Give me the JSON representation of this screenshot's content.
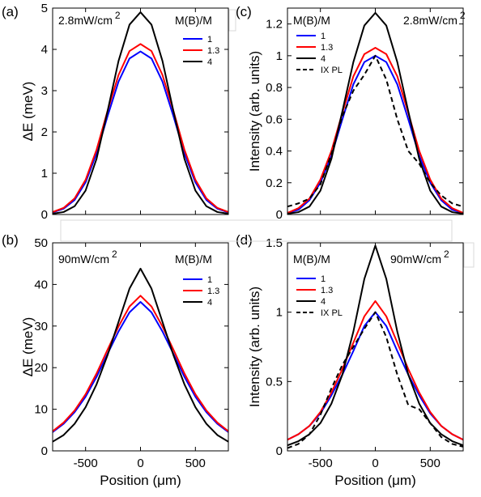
{
  "chart_data": [
    {
      "panel_label": "(a)",
      "type": "line",
      "annotation": "2.8mW/cm",
      "annotation_sup": "2",
      "legend_title": "M(B)/M",
      "xlabel": "",
      "ylabel": "ΔE (meV)",
      "xlim": [
        -800,
        800
      ],
      "ylim": [
        0,
        5
      ],
      "xticks": [],
      "xtick_labels": [],
      "yticks": [
        0,
        1,
        2,
        3,
        4,
        5
      ],
      "ytick_labels": [
        "0",
        "1",
        "2",
        "3",
        "4",
        "5"
      ],
      "x": [
        -800,
        -700,
        -600,
        -500,
        -400,
        -300,
        -200,
        -100,
        0,
        100,
        200,
        300,
        400,
        500,
        600,
        700,
        800
      ],
      "series": [
        {
          "name": "1",
          "color": "#0000ff",
          "dash": "solid",
          "values": [
            0.05,
            0.14,
            0.35,
            0.78,
            1.48,
            2.38,
            3.22,
            3.78,
            3.95,
            3.78,
            3.22,
            2.38,
            1.48,
            0.78,
            0.35,
            0.14,
            0.05
          ]
        },
        {
          "name": "1.3",
          "color": "#ff0000",
          "dash": "solid",
          "values": [
            0.06,
            0.16,
            0.39,
            0.84,
            1.57,
            2.51,
            3.38,
            3.96,
            4.13,
            3.96,
            3.38,
            2.51,
            1.57,
            0.84,
            0.39,
            0.16,
            0.06
          ]
        },
        {
          "name": "4",
          "color": "#000000",
          "dash": "solid",
          "values": [
            0.02,
            0.06,
            0.2,
            0.58,
            1.35,
            2.5,
            3.72,
            4.6,
            4.9,
            4.6,
            3.72,
            2.5,
            1.35,
            0.58,
            0.2,
            0.06,
            0.02
          ]
        }
      ]
    },
    {
      "panel_label": "(c)",
      "type": "line",
      "annotation": "2.8mW/cm",
      "annotation_sup": "2",
      "legend_title": "M(B)/M",
      "xlabel": "",
      "ylabel": "Intensity (arb. units)",
      "xlim": [
        -800,
        800
      ],
      "ylim": [
        0,
        1.3
      ],
      "xticks": [],
      "xtick_labels": [],
      "yticks": [
        0,
        0.2,
        0.4,
        0.6,
        0.8,
        1,
        1.2
      ],
      "ytick_labels": [
        "0",
        "0.2",
        "0.4",
        "0.6",
        "0.8",
        "1",
        "1.2"
      ],
      "x": [
        -800,
        -700,
        -600,
        -500,
        -400,
        -300,
        -200,
        -100,
        0,
        100,
        200,
        300,
        400,
        500,
        600,
        700,
        800
      ],
      "series": [
        {
          "name": "1",
          "color": "#0000ff",
          "dash": "solid",
          "values": [
            0.01,
            0.03,
            0.09,
            0.2,
            0.37,
            0.6,
            0.82,
            0.96,
            1.0,
            0.96,
            0.82,
            0.6,
            0.37,
            0.2,
            0.09,
            0.03,
            0.01
          ]
        },
        {
          "name": "1.3",
          "color": "#ff0000",
          "dash": "solid",
          "values": [
            0.01,
            0.04,
            0.1,
            0.22,
            0.4,
            0.64,
            0.87,
            1.01,
            1.05,
            1.01,
            0.87,
            0.64,
            0.4,
            0.22,
            0.1,
            0.04,
            0.01
          ]
        },
        {
          "name": "4",
          "color": "#000000",
          "dash": "solid",
          "values": [
            0.005,
            0.015,
            0.05,
            0.15,
            0.35,
            0.65,
            0.96,
            1.19,
            1.27,
            1.19,
            0.96,
            0.65,
            0.35,
            0.15,
            0.05,
            0.015,
            0.005
          ]
        },
        {
          "name": "IX PL",
          "color": "#000000",
          "dash": "dashed",
          "values": [
            0.05,
            0.07,
            0.1,
            0.19,
            0.38,
            0.62,
            0.78,
            0.88,
            1.0,
            0.85,
            0.6,
            0.4,
            0.32,
            0.2,
            0.12,
            0.07,
            0.05
          ]
        }
      ]
    },
    {
      "panel_label": "(b)",
      "type": "line",
      "annotation": "90mW/cm",
      "annotation_sup": "2",
      "legend_title": "M(B)/M",
      "xlabel": "Position (μm)",
      "ylabel": "ΔE (meV)",
      "xlim": [
        -800,
        800
      ],
      "ylim": [
        0,
        50
      ],
      "xticks": [
        -500,
        0,
        500
      ],
      "xtick_labels": [
        "-500",
        "0",
        "500"
      ],
      "yticks": [
        0,
        10,
        20,
        30,
        40,
        50
      ],
      "ytick_labels": [
        "0",
        "10",
        "20",
        "30",
        "40",
        "50"
      ],
      "x": [
        -800,
        -700,
        -600,
        -500,
        -400,
        -300,
        -200,
        -100,
        0,
        100,
        200,
        300,
        400,
        500,
        600,
        700,
        800
      ],
      "series": [
        {
          "name": "1",
          "color": "#0000ff",
          "dash": "solid",
          "values": [
            4.5,
            6.5,
            9.3,
            13.0,
            17.8,
            23.3,
            28.7,
            33.3,
            35.8,
            33.3,
            28.7,
            23.3,
            17.8,
            13.0,
            9.3,
            6.5,
            4.5
          ]
        },
        {
          "name": "1.3",
          "color": "#ff0000",
          "dash": "solid",
          "values": [
            4.7,
            6.8,
            9.7,
            13.6,
            18.6,
            24.3,
            29.9,
            34.7,
            37.3,
            34.7,
            29.9,
            24.3,
            18.6,
            13.6,
            9.7,
            6.8,
            4.7
          ]
        },
        {
          "name": "4",
          "color": "#000000",
          "dash": "solid",
          "values": [
            2.2,
            3.8,
            6.5,
            10.5,
            16.0,
            23.0,
            31.0,
            39.0,
            43.8,
            39.0,
            31.0,
            23.0,
            16.0,
            10.5,
            6.5,
            3.8,
            2.2
          ]
        }
      ]
    },
    {
      "panel_label": "(d)",
      "type": "line",
      "annotation": "90mW/cm",
      "annotation_sup": "2",
      "legend_title": "M(B)/M",
      "xlabel": "Position (μm)",
      "ylabel": "Intensity (arb. units)",
      "xlim": [
        -800,
        800
      ],
      "ylim": [
        0,
        1.5
      ],
      "xticks": [
        -500,
        0,
        500
      ],
      "xtick_labels": [
        "-500",
        "0",
        "500"
      ],
      "yticks": [
        0,
        0.5,
        1,
        1.5
      ],
      "ytick_labels": [
        "0",
        "0.5",
        "1",
        "1.5"
      ],
      "x": [
        -800,
        -700,
        -600,
        -500,
        -400,
        -300,
        -200,
        -100,
        0,
        100,
        200,
        300,
        400,
        500,
        600,
        700,
        800
      ],
      "series": [
        {
          "name": "1",
          "color": "#0000ff",
          "dash": "solid",
          "values": [
            0.08,
            0.12,
            0.18,
            0.27,
            0.4,
            0.55,
            0.72,
            0.9,
            1.0,
            0.9,
            0.72,
            0.55,
            0.4,
            0.27,
            0.18,
            0.12,
            0.08
          ]
        },
        {
          "name": "1.3",
          "color": "#ff0000",
          "dash": "solid",
          "values": [
            0.08,
            0.12,
            0.18,
            0.28,
            0.42,
            0.59,
            0.78,
            0.97,
            1.08,
            0.97,
            0.78,
            0.59,
            0.42,
            0.28,
            0.18,
            0.12,
            0.08
          ]
        },
        {
          "name": "4",
          "color": "#000000",
          "dash": "solid",
          "values": [
            0.04,
            0.07,
            0.12,
            0.2,
            0.34,
            0.55,
            0.86,
            1.24,
            1.48,
            1.24,
            0.86,
            0.55,
            0.34,
            0.2,
            0.12,
            0.07,
            0.04
          ]
        },
        {
          "name": "IX PL",
          "color": "#000000",
          "dash": "dashed",
          "values": [
            0.02,
            0.05,
            0.12,
            0.26,
            0.45,
            0.62,
            0.75,
            0.88,
            1.0,
            0.82,
            0.55,
            0.33,
            0.3,
            0.2,
            0.1,
            0.05,
            0.03
          ]
        }
      ]
    }
  ]
}
